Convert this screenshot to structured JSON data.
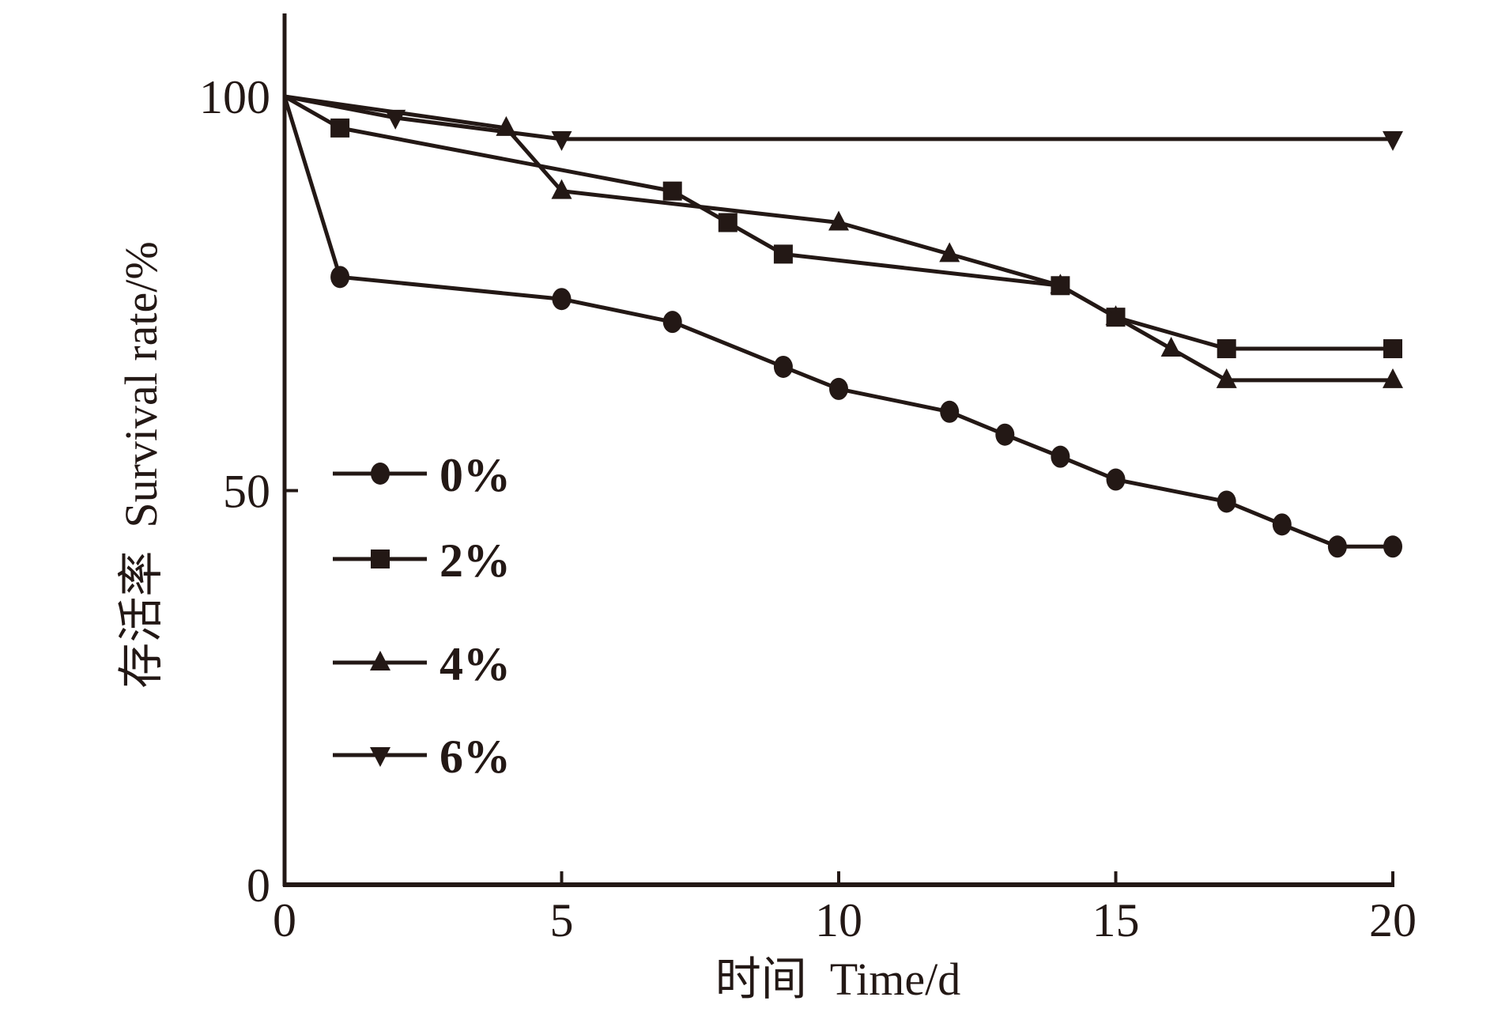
{
  "chart_data": {
    "type": "line",
    "title": "",
    "xlabel": "时间  Time/d",
    "ylabel": "存活率  Survival rate/%",
    "xlim": [
      0,
      20
    ],
    "ylim": [
      0,
      100
    ],
    "x_ticks": [
      0,
      5,
      10,
      15,
      20
    ],
    "y_ticks": [
      0,
      50,
      100
    ],
    "x_tick_labels": [
      "0",
      "5",
      "10",
      "15",
      "20"
    ],
    "y_tick_labels": [
      "0",
      "50",
      "100"
    ],
    "grid": false,
    "legend_position": "center-left",
    "line_color": "#231815",
    "series": [
      {
        "name": "0%",
        "marker": "circle",
        "x": [
          0,
          1,
          5,
          7,
          9,
          10,
          12,
          13,
          14,
          15,
          17,
          18,
          19,
          20
        ],
        "y": [
          100,
          77.1,
          74.3,
          71.4,
          65.7,
          62.9,
          60.0,
          57.1,
          54.3,
          51.4,
          48.6,
          45.7,
          42.9,
          42.9
        ]
      },
      {
        "name": "2%",
        "marker": "square",
        "x": [
          0,
          1,
          7,
          8,
          9,
          14,
          15,
          17,
          20
        ],
        "y": [
          100,
          96,
          88,
          84,
          80,
          76,
          72,
          68,
          68
        ]
      },
      {
        "name": "4%",
        "marker": "triangle-up",
        "x": [
          0,
          4,
          5,
          10,
          12,
          14,
          15,
          16,
          17,
          20
        ],
        "y": [
          100,
          96,
          88,
          84,
          80,
          76,
          72,
          68,
          64,
          64
        ]
      },
      {
        "name": "6%",
        "marker": "triangle-down",
        "x": [
          0,
          2,
          5,
          20
        ],
        "y": [
          100,
          97.3,
          94.6,
          94.6
        ]
      }
    ]
  }
}
